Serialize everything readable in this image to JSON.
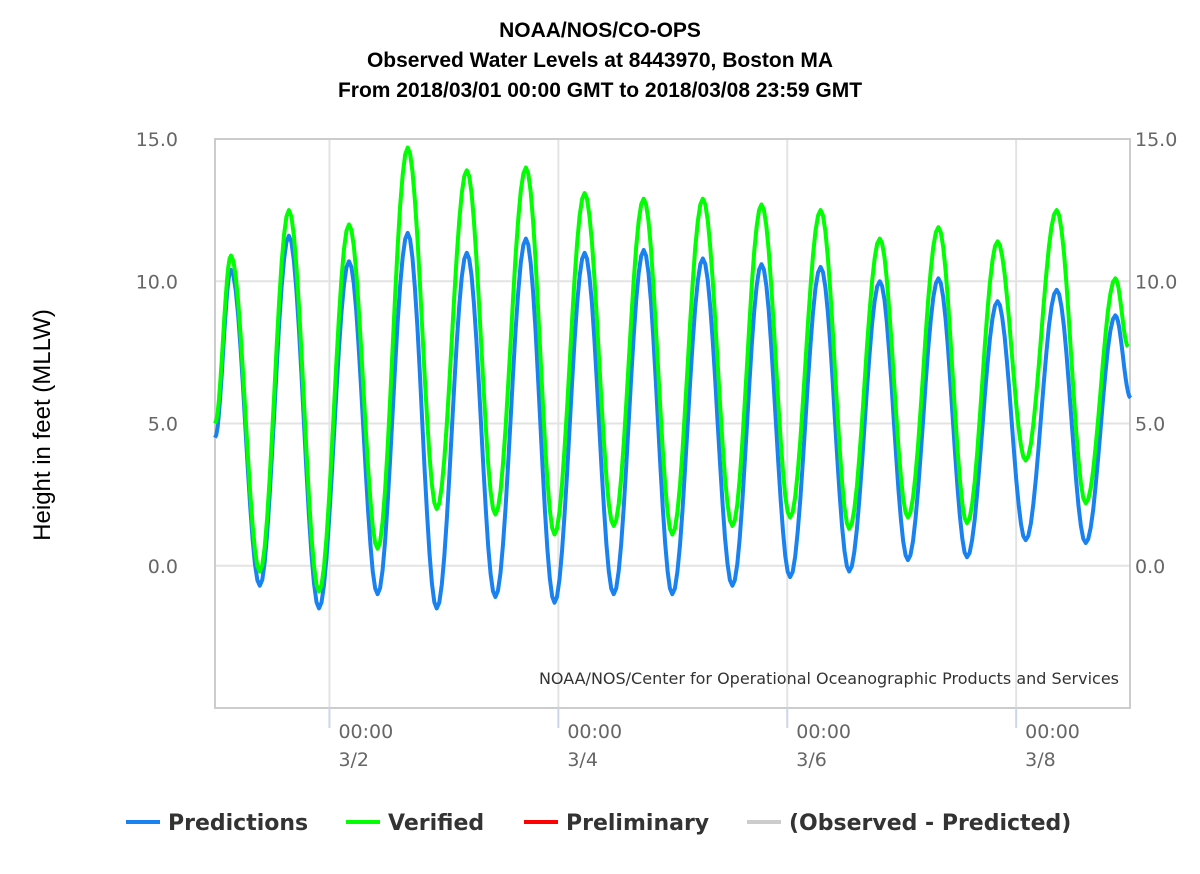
{
  "chart_data": {
    "type": "line",
    "title": [
      "NOAA/NOS/CO-OPS",
      "Observed Water Levels at 8443970, Boston MA",
      "From 2018/03/01 00:00 GMT to 2018/03/08 23:59 GMT"
    ],
    "ylabel": "Height in feet (MLLW)",
    "xlabel": "",
    "ylim": [
      -5,
      15
    ],
    "xlim_hours_from_2018_03_01_00_00": [
      0,
      192
    ],
    "yticks": [
      "0.0",
      "5.0",
      "10.0",
      "15.0"
    ],
    "ytick_values": [
      0,
      5,
      10,
      15
    ],
    "xticks": [
      {
        "hour": 24,
        "time": "00:00",
        "date": "3/2"
      },
      {
        "hour": 72,
        "time": "00:00",
        "date": "3/4"
      },
      {
        "hour": 120,
        "time": "00:00",
        "date": "3/6"
      },
      {
        "hour": 168,
        "time": "00:00",
        "date": "3/8"
      }
    ],
    "grid": true,
    "credits": "NOAA/NOS/Center for Operational Oceanographic Products and Services",
    "legend_position": "bottom",
    "series": [
      {
        "name": "Predictions",
        "color": "#1a82f0",
        "points_hour_value": [
          [
            0,
            4.5
          ],
          [
            3.35,
            10.4
          ],
          [
            9.4,
            -0.7
          ],
          [
            15.5,
            11.6
          ],
          [
            21.8,
            -1.5
          ],
          [
            28.1,
            10.7
          ],
          [
            34.1,
            -1.0
          ],
          [
            40.4,
            11.7
          ],
          [
            46.5,
            -1.5
          ],
          [
            52.8,
            11.0
          ],
          [
            58.8,
            -1.1
          ],
          [
            65.2,
            11.5
          ],
          [
            71.2,
            -1.3
          ],
          [
            77.5,
            11.0
          ],
          [
            83.6,
            -1.0
          ],
          [
            89.9,
            11.1
          ],
          [
            95.9,
            -1.0
          ],
          [
            102.3,
            10.8
          ],
          [
            108.5,
            -0.7
          ],
          [
            114.6,
            10.6
          ],
          [
            120.6,
            -0.4
          ],
          [
            127.0,
            10.5
          ],
          [
            133.0,
            -0.2
          ],
          [
            139.4,
            10.0
          ],
          [
            145.3,
            0.2
          ],
          [
            151.7,
            10.1
          ],
          [
            157.7,
            0.3
          ],
          [
            164.1,
            9.3
          ],
          [
            170.0,
            0.9
          ],
          [
            176.5,
            9.7
          ],
          [
            182.6,
            0.8
          ],
          [
            188.8,
            8.8
          ],
          [
            192,
            5.9
          ]
        ]
      },
      {
        "name": "Verified",
        "color": "#00ff00",
        "points_hour_value": [
          [
            0,
            5.0
          ],
          [
            3.35,
            10.9
          ],
          [
            9.4,
            -0.2
          ],
          [
            15.5,
            12.5
          ],
          [
            21.8,
            -0.9
          ],
          [
            28.1,
            12.0
          ],
          [
            34.1,
            0.6
          ],
          [
            40.4,
            14.7
          ],
          [
            46.5,
            2.0
          ],
          [
            52.8,
            13.9
          ],
          [
            58.8,
            1.8
          ],
          [
            65.2,
            14.0
          ],
          [
            71.2,
            1.1
          ],
          [
            77.5,
            13.1
          ],
          [
            83.6,
            1.4
          ],
          [
            89.9,
            12.9
          ],
          [
            95.9,
            1.1
          ],
          [
            102.3,
            12.9
          ],
          [
            108.5,
            1.4
          ],
          [
            114.6,
            12.7
          ],
          [
            120.6,
            1.7
          ],
          [
            127.0,
            12.5
          ],
          [
            133.0,
            1.3
          ],
          [
            139.4,
            11.5
          ],
          [
            145.3,
            1.7
          ],
          [
            151.7,
            11.9
          ],
          [
            157.7,
            1.5
          ],
          [
            164.1,
            11.4
          ],
          [
            170.0,
            3.7
          ],
          [
            176.5,
            12.5
          ],
          [
            182.6,
            2.2
          ],
          [
            188.8,
            10.1
          ],
          [
            191.5,
            7.7
          ]
        ]
      },
      {
        "name": "Preliminary",
        "color": "#ff0000",
        "points_hour_value": []
      },
      {
        "name": "(Observed - Predicted)",
        "color": "#cccccc",
        "points_hour_value": [],
        "hidden": true
      }
    ]
  }
}
